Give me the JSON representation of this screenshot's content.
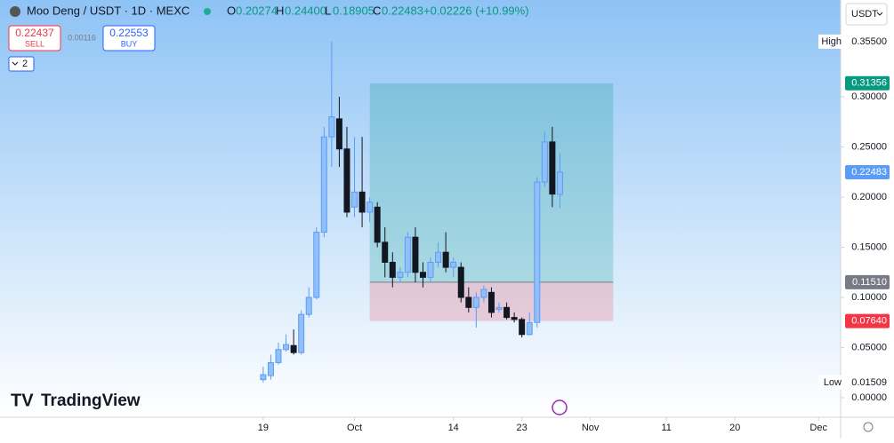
{
  "header": {
    "symbol": "Moo Deng / USDT · 1D · MEXC",
    "o_label": "O",
    "o": "0.20274",
    "h_label": "H",
    "h": "0.24400",
    "l_label": "L",
    "l": "0.18905",
    "c_label": "C",
    "c": "0.22483",
    "change": "+0.02226 (+10.99%)",
    "sell_price": "0.22437",
    "sell": "SELL",
    "spread": "0.00116",
    "buy_price": "0.22553",
    "buy": "BUY",
    "indicators": "2",
    "currency": "USDT",
    "logo": "TradingView"
  },
  "chart_data": {
    "type": "candlestick",
    "x": [
      0,
      1,
      2,
      3,
      4,
      5,
      6,
      7,
      8,
      9,
      10,
      11,
      12,
      13,
      14,
      15,
      16,
      17,
      18,
      19,
      20,
      21,
      22,
      23,
      24,
      25,
      26,
      27,
      28,
      29,
      30,
      31,
      32,
      33,
      34,
      35,
      36,
      37,
      38,
      39
    ],
    "series": [
      {
        "up_color": "#90bff9",
        "down_color": "#131722",
        "open": [
          0.018,
          0.022,
          0.035,
          0.048,
          0.052,
          0.045,
          0.083,
          0.1,
          0.165,
          0.26,
          0.278,
          0.248,
          0.19,
          0.205,
          0.185,
          0.19,
          0.155,
          0.135,
          0.12,
          0.125,
          0.16,
          0.125,
          0.12,
          0.135,
          0.145,
          0.13,
          0.13,
          0.1,
          0.09,
          0.1,
          0.105,
          0.088,
          0.09,
          0.08,
          0.078,
          0.063,
          0.075,
          0.215,
          0.255,
          0.20274
        ],
        "high": [
          0.031,
          0.043,
          0.055,
          0.063,
          0.068,
          0.087,
          0.11,
          0.17,
          0.27,
          0.355,
          0.3,
          0.27,
          0.26,
          0.26,
          0.2,
          0.195,
          0.17,
          0.145,
          0.13,
          0.165,
          0.17,
          0.135,
          0.14,
          0.155,
          0.165,
          0.14,
          0.135,
          0.11,
          0.105,
          0.112,
          0.11,
          0.095,
          0.095,
          0.085,
          0.08,
          0.085,
          0.22,
          0.265,
          0.27,
          0.244
        ],
        "low": [
          0.01509,
          0.018,
          0.033,
          0.046,
          0.043,
          0.043,
          0.08,
          0.098,
          0.16,
          0.23,
          0.23,
          0.18,
          0.18,
          0.17,
          0.175,
          0.15,
          0.12,
          0.11,
          0.115,
          0.12,
          0.115,
          0.11,
          0.115,
          0.13,
          0.125,
          0.12,
          0.095,
          0.085,
          0.07,
          0.095,
          0.08,
          0.085,
          0.078,
          0.075,
          0.06,
          0.062,
          0.07,
          0.21,
          0.19,
          0.18905
        ],
        "close": [
          0.023,
          0.035,
          0.048,
          0.053,
          0.045,
          0.083,
          0.1,
          0.165,
          0.26,
          0.28,
          0.248,
          0.185,
          0.205,
          0.185,
          0.195,
          0.155,
          0.135,
          0.12,
          0.125,
          0.16,
          0.125,
          0.12,
          0.135,
          0.145,
          0.13,
          0.135,
          0.1,
          0.09,
          0.1,
          0.108,
          0.085,
          0.09,
          0.08,
          0.078,
          0.063,
          0.075,
          0.215,
          0.255,
          0.203,
          0.22483
        ]
      }
    ],
    "position": {
      "start": 14,
      "end": 46,
      "target": 0.31356,
      "entry": 0.1151,
      "stop": 0.0764
    },
    "price_labels": [
      {
        "name": "High",
        "value": 0.355,
        "label": "0.35500"
      },
      {
        "value": 0.31356,
        "label": "0.31356",
        "color": "#089981"
      },
      {
        "value": 0.22483,
        "label": "0.22483",
        "color": "#5b9cf6"
      },
      {
        "value": 0.1151,
        "label": "0.11510",
        "color": "#787b86"
      },
      {
        "value": 0.0764,
        "label": "0.07640",
        "color": "#f23645"
      },
      {
        "name": "Low",
        "value": 0.01509,
        "label": "0.01509"
      }
    ],
    "xlim": [
      -34.6,
      75.9
    ],
    "ylim": [
      -0.0195,
      0.3965
    ],
    "xticks": [
      {
        "value": 0,
        "label": "19"
      },
      {
        "value": 12,
        "label": "Oct"
      },
      {
        "value": 25,
        "label": "14"
      },
      {
        "value": 34,
        "label": "23"
      },
      {
        "value": 43,
        "label": "Nov"
      },
      {
        "value": 53,
        "label": "11"
      },
      {
        "value": 62,
        "label": "20"
      },
      {
        "value": 73,
        "label": "Dec"
      }
    ],
    "yticks": [
      {
        "value": 0,
        "label": "0.00000"
      },
      {
        "value": 0.05,
        "label": "0.05000"
      },
      {
        "value": 0.1,
        "label": "0.10000"
      },
      {
        "value": 0.15,
        "label": "0.15000"
      },
      {
        "value": 0.2,
        "label": "0.20000"
      },
      {
        "value": 0.25,
        "label": "0.25000"
      },
      {
        "value": 0.3,
        "label": "0.30000"
      }
    ]
  }
}
